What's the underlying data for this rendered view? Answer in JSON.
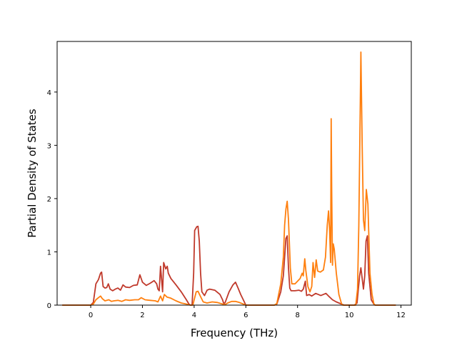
{
  "chart_data": {
    "type": "line",
    "title": "",
    "xlabel": "Frequency (THz)",
    "ylabel": "Partial Density of States",
    "xlim": [
      -1.3,
      12.4
    ],
    "ylim": [
      0,
      4.95
    ],
    "xticks": [
      0,
      2,
      4,
      6,
      8,
      10,
      12
    ],
    "yticks": [
      0,
      1,
      2,
      3,
      4
    ],
    "grid": false,
    "legend": "none",
    "series": [
      {
        "color": "#c0392b",
        "points": [
          [
            -1.1,
            0
          ],
          [
            0.0,
            0
          ],
          [
            0.1,
            0.05
          ],
          [
            0.2,
            0.4
          ],
          [
            0.3,
            0.48
          ],
          [
            0.38,
            0.6
          ],
          [
            0.42,
            0.62
          ],
          [
            0.48,
            0.35
          ],
          [
            0.55,
            0.32
          ],
          [
            0.62,
            0.33
          ],
          [
            0.68,
            0.4
          ],
          [
            0.75,
            0.3
          ],
          [
            0.85,
            0.27
          ],
          [
            0.95,
            0.3
          ],
          [
            1.05,
            0.32
          ],
          [
            1.15,
            0.28
          ],
          [
            1.25,
            0.38
          ],
          [
            1.35,
            0.34
          ],
          [
            1.5,
            0.33
          ],
          [
            1.65,
            0.37
          ],
          [
            1.8,
            0.38
          ],
          [
            1.9,
            0.57
          ],
          [
            2.0,
            0.43
          ],
          [
            2.15,
            0.37
          ],
          [
            2.3,
            0.41
          ],
          [
            2.45,
            0.46
          ],
          [
            2.55,
            0.4
          ],
          [
            2.6,
            0.3
          ],
          [
            2.65,
            0.27
          ],
          [
            2.7,
            0.73
          ],
          [
            2.78,
            0.25
          ],
          [
            2.82,
            0.8
          ],
          [
            2.9,
            0.68
          ],
          [
            2.96,
            0.73
          ],
          [
            3.0,
            0.6
          ],
          [
            3.1,
            0.5
          ],
          [
            3.3,
            0.38
          ],
          [
            3.5,
            0.25
          ],
          [
            3.7,
            0.1
          ],
          [
            3.8,
            0.02
          ],
          [
            3.85,
            0
          ],
          [
            3.92,
            0
          ],
          [
            3.98,
            0.6
          ],
          [
            4.02,
            1.4
          ],
          [
            4.1,
            1.47
          ],
          [
            4.15,
            1.48
          ],
          [
            4.2,
            1.2
          ],
          [
            4.25,
            0.6
          ],
          [
            4.3,
            0.25
          ],
          [
            4.4,
            0.18
          ],
          [
            4.5,
            0.28
          ],
          [
            4.6,
            0.3
          ],
          [
            4.8,
            0.28
          ],
          [
            5.0,
            0.2
          ],
          [
            5.1,
            0.1
          ],
          [
            5.15,
            0.02
          ],
          [
            5.2,
            0.05
          ],
          [
            5.35,
            0.25
          ],
          [
            5.5,
            0.38
          ],
          [
            5.6,
            0.43
          ],
          [
            5.7,
            0.32
          ],
          [
            5.8,
            0.2
          ],
          [
            5.9,
            0.1
          ],
          [
            6.0,
            0
          ],
          [
            7.1,
            0
          ],
          [
            7.2,
            0.02
          ],
          [
            7.35,
            0.25
          ],
          [
            7.45,
            0.55
          ],
          [
            7.55,
            1.25
          ],
          [
            7.6,
            1.3
          ],
          [
            7.65,
            0.7
          ],
          [
            7.7,
            0.32
          ],
          [
            7.75,
            0.27
          ],
          [
            7.9,
            0.27
          ],
          [
            8.05,
            0.28
          ],
          [
            8.15,
            0.26
          ],
          [
            8.22,
            0.3
          ],
          [
            8.3,
            0.45
          ],
          [
            8.35,
            0.18
          ],
          [
            8.45,
            0.2
          ],
          [
            8.55,
            0.17
          ],
          [
            8.7,
            0.22
          ],
          [
            8.8,
            0.2
          ],
          [
            8.9,
            0.18
          ],
          [
            9.0,
            0.2
          ],
          [
            9.1,
            0.22
          ],
          [
            9.2,
            0.17
          ],
          [
            9.35,
            0.1
          ],
          [
            9.5,
            0.06
          ],
          [
            9.6,
            0.04
          ],
          [
            9.7,
            0.02
          ],
          [
            9.8,
            0
          ],
          [
            10.2,
            0
          ],
          [
            10.3,
            0.04
          ],
          [
            10.4,
            0.55
          ],
          [
            10.45,
            0.7
          ],
          [
            10.5,
            0.5
          ],
          [
            10.55,
            0.3
          ],
          [
            10.6,
            0.55
          ],
          [
            10.65,
            1.2
          ],
          [
            10.7,
            1.3
          ],
          [
            10.75,
            0.6
          ],
          [
            10.85,
            0.1
          ],
          [
            10.95,
            0.02
          ],
          [
            11.0,
            0
          ],
          [
            11.8,
            0
          ]
        ]
      },
      {
        "color": "#ff7f0e",
        "points": [
          [
            -1.1,
            0
          ],
          [
            0.0,
            0
          ],
          [
            0.1,
            0.02
          ],
          [
            0.2,
            0.1
          ],
          [
            0.3,
            0.14
          ],
          [
            0.38,
            0.17
          ],
          [
            0.45,
            0.12
          ],
          [
            0.55,
            0.08
          ],
          [
            0.7,
            0.1
          ],
          [
            0.8,
            0.07
          ],
          [
            0.9,
            0.08
          ],
          [
            1.05,
            0.09
          ],
          [
            1.2,
            0.07
          ],
          [
            1.35,
            0.1
          ],
          [
            1.5,
            0.09
          ],
          [
            1.7,
            0.1
          ],
          [
            1.85,
            0.1
          ],
          [
            1.95,
            0.14
          ],
          [
            2.1,
            0.1
          ],
          [
            2.3,
            0.09
          ],
          [
            2.5,
            0.08
          ],
          [
            2.6,
            0.06
          ],
          [
            2.7,
            0.17
          ],
          [
            2.78,
            0.08
          ],
          [
            2.85,
            0.2
          ],
          [
            2.95,
            0.15
          ],
          [
            3.1,
            0.13
          ],
          [
            3.3,
            0.08
          ],
          [
            3.5,
            0.04
          ],
          [
            3.7,
            0.02
          ],
          [
            3.85,
            0
          ],
          [
            3.95,
            0
          ],
          [
            4.0,
            0.1
          ],
          [
            4.08,
            0.25
          ],
          [
            4.15,
            0.26
          ],
          [
            4.25,
            0.16
          ],
          [
            4.35,
            0.06
          ],
          [
            4.5,
            0.04
          ],
          [
            4.7,
            0.06
          ],
          [
            4.9,
            0.05
          ],
          [
            5.1,
            0.02
          ],
          [
            5.2,
            0.01
          ],
          [
            5.3,
            0.04
          ],
          [
            5.45,
            0.07
          ],
          [
            5.6,
            0.07
          ],
          [
            5.75,
            0.05
          ],
          [
            5.9,
            0.02
          ],
          [
            6.0,
            0
          ],
          [
            7.1,
            0
          ],
          [
            7.2,
            0.03
          ],
          [
            7.35,
            0.4
          ],
          [
            7.45,
            0.9
          ],
          [
            7.5,
            1.5
          ],
          [
            7.55,
            1.8
          ],
          [
            7.6,
            1.95
          ],
          [
            7.65,
            1.6
          ],
          [
            7.72,
            0.7
          ],
          [
            7.78,
            0.4
          ],
          [
            7.9,
            0.4
          ],
          [
            8.0,
            0.45
          ],
          [
            8.1,
            0.5
          ],
          [
            8.18,
            0.6
          ],
          [
            8.22,
            0.55
          ],
          [
            8.28,
            0.87
          ],
          [
            8.32,
            0.65
          ],
          [
            8.4,
            0.35
          ],
          [
            8.48,
            0.25
          ],
          [
            8.55,
            0.35
          ],
          [
            8.6,
            0.8
          ],
          [
            8.66,
            0.52
          ],
          [
            8.72,
            0.85
          ],
          [
            8.78,
            0.64
          ],
          [
            8.88,
            0.62
          ],
          [
            9.0,
            0.66
          ],
          [
            9.08,
            0.9
          ],
          [
            9.15,
            1.5
          ],
          [
            9.2,
            1.77
          ],
          [
            9.24,
            1.4
          ],
          [
            9.28,
            0.8
          ],
          [
            9.3,
            3.5
          ],
          [
            9.32,
            2.2
          ],
          [
            9.35,
            0.75
          ],
          [
            9.38,
            1.15
          ],
          [
            9.42,
            1.05
          ],
          [
            9.5,
            0.6
          ],
          [
            9.6,
            0.2
          ],
          [
            9.7,
            0.03
          ],
          [
            9.75,
            0
          ],
          [
            10.25,
            0
          ],
          [
            10.32,
            0.3
          ],
          [
            10.37,
            1.5
          ],
          [
            10.42,
            3.5
          ],
          [
            10.45,
            4.75
          ],
          [
            10.5,
            3.0
          ],
          [
            10.55,
            1.6
          ],
          [
            10.6,
            1.4
          ],
          [
            10.66,
            2.17
          ],
          [
            10.72,
            1.9
          ],
          [
            10.8,
            0.6
          ],
          [
            10.88,
            0.2
          ],
          [
            10.95,
            0.03
          ],
          [
            11.0,
            0
          ],
          [
            11.8,
            0
          ]
        ]
      }
    ]
  }
}
